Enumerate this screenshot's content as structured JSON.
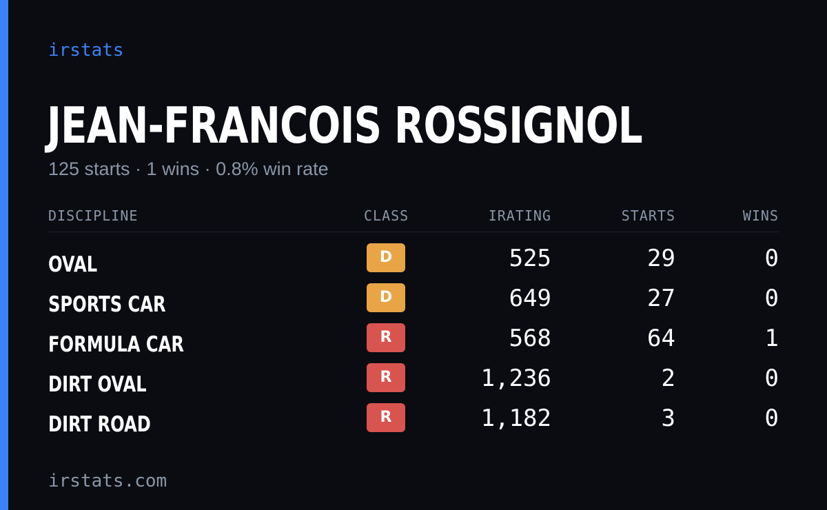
{
  "brand": "irstats",
  "driver": {
    "name": "JEAN-FRANCOIS ROSSIGNOL",
    "summary": "125 starts · 1 wins · 0.8% win rate"
  },
  "table": {
    "headers": {
      "discipline": "DISCIPLINE",
      "class": "CLASS",
      "irating": "IRATING",
      "starts": "STARTS",
      "wins": "WINS"
    },
    "rows": [
      {
        "discipline": "OVAL",
        "class": "D",
        "class_color": "#e8a445",
        "irating": "525",
        "starts": "29",
        "wins": "0"
      },
      {
        "discipline": "SPORTS CAR",
        "class": "D",
        "class_color": "#e8a445",
        "irating": "649",
        "starts": "27",
        "wins": "0"
      },
      {
        "discipline": "FORMULA CAR",
        "class": "R",
        "class_color": "#d9534f",
        "irating": "568",
        "starts": "64",
        "wins": "1"
      },
      {
        "discipline": "DIRT OVAL",
        "class": "R",
        "class_color": "#d9534f",
        "irating": "1,236",
        "starts": "2",
        "wins": "0"
      },
      {
        "discipline": "DIRT ROAD",
        "class": "R",
        "class_color": "#d9534f",
        "irating": "1,182",
        "starts": "3",
        "wins": "0"
      }
    ]
  },
  "footer": "irstats.com",
  "colors": {
    "accent": "#3b82f6",
    "background": "#0a0c12",
    "muted_text": "#8b96a8"
  }
}
